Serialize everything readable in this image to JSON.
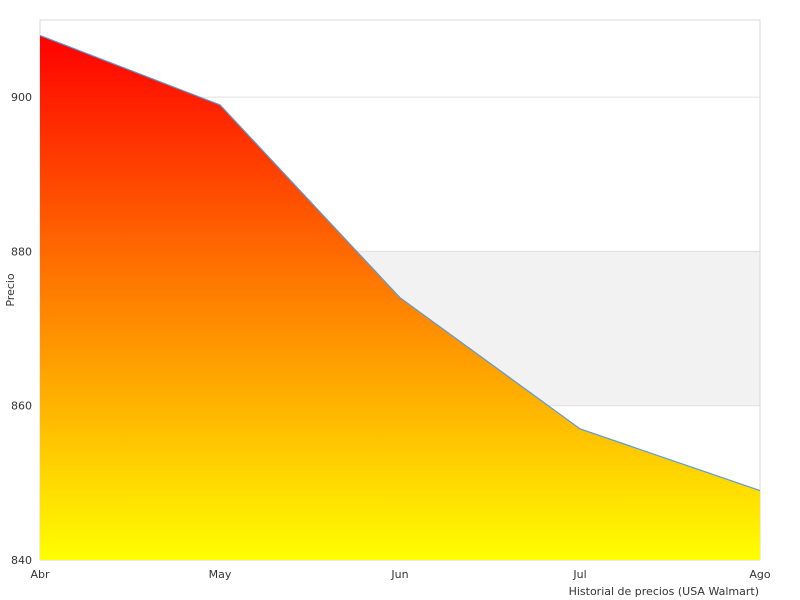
{
  "chart_data": {
    "type": "area",
    "categories": [
      "Abr",
      "May",
      "Jun",
      "Jul",
      "Ago"
    ],
    "values": [
      908,
      899,
      874,
      857,
      849
    ],
    "ylim": [
      840,
      910
    ],
    "yticks": [
      840,
      860,
      880,
      900
    ],
    "ylabel": "Precio",
    "xlabel": "Historial de precios (USA Walmart)",
    "grid": true,
    "alternate_band": [
      860,
      880
    ],
    "colors": {
      "fill_top": "#ff0000",
      "fill_bottom": "#ffff00",
      "line": "#5b9bd5",
      "grid": "#e0e0e0",
      "band": "#f2f2f2",
      "border": "#d8d8d8"
    }
  }
}
